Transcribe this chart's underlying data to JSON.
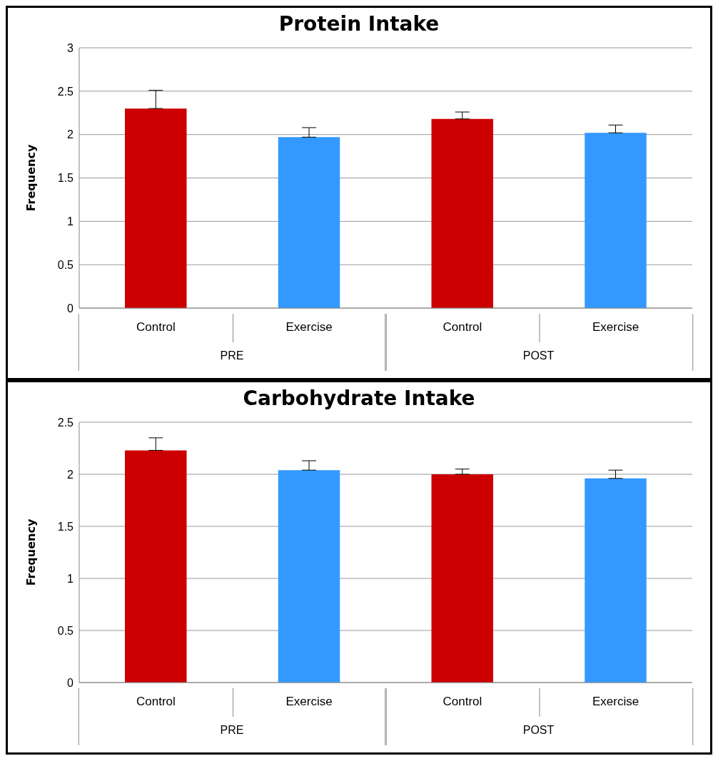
{
  "chart_data": [
    {
      "type": "bar",
      "title": "Protein Intake",
      "ylabel": "Frequency",
      "categories": [
        "Control",
        "Exercise",
        "Control",
        "Exercise"
      ],
      "values": [
        2.3,
        1.97,
        2.18,
        2.02
      ],
      "colors": [
        "#cc0000",
        "#3399ff",
        "#cc0000",
        "#3399ff"
      ],
      "errors": [
        [
          2.3,
          2.51
        ],
        [
          1.97,
          2.08
        ],
        [
          2.18,
          2.26
        ],
        [
          2.02,
          2.11
        ]
      ],
      "ylim": [
        0,
        3
      ],
      "yticks": [
        0,
        0.5,
        1,
        1.5,
        2,
        2.5,
        3
      ],
      "grid": "y",
      "annotations": [
        "PRE",
        "POST"
      ]
    },
    {
      "type": "bar",
      "title": "Carbohydrate Intake",
      "ylabel": "Frequency",
      "categories": [
        "Control",
        "Exercise",
        "Control",
        "Exercise"
      ],
      "values": [
        2.23,
        2.04,
        2.0,
        1.96
      ],
      "colors": [
        "#cc0000",
        "#3399ff",
        "#cc0000",
        "#3399ff"
      ],
      "errors": [
        [
          2.23,
          2.35
        ],
        [
          2.04,
          2.13
        ],
        [
          2.0,
          2.05
        ],
        [
          1.96,
          2.04
        ]
      ],
      "ylim": [
        0,
        2.5
      ],
      "yticks": [
        0,
        0.5,
        1,
        1.5,
        2,
        2.5
      ],
      "grid": "y",
      "annotations": [
        "PRE",
        "POST"
      ]
    }
  ]
}
